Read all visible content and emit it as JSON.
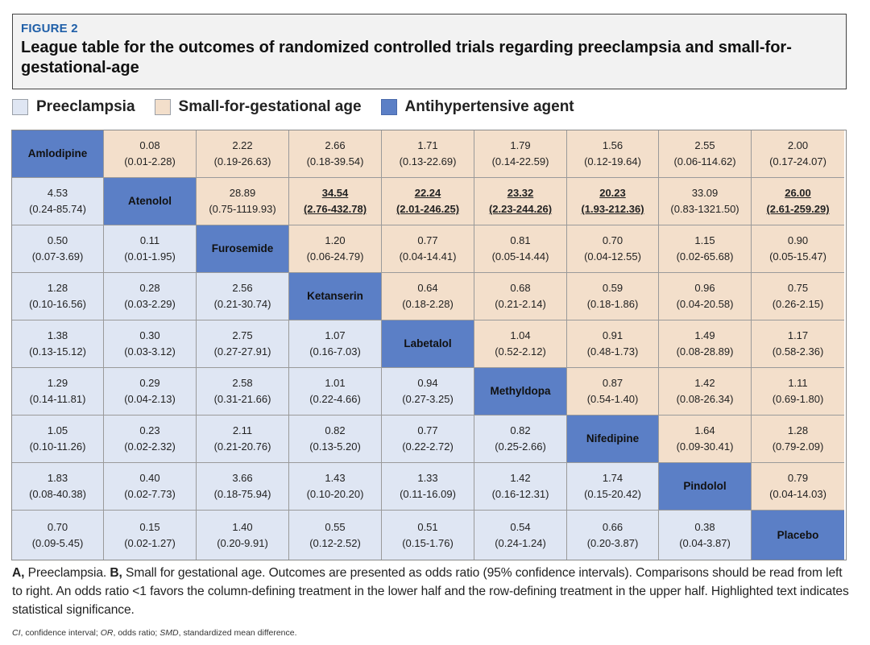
{
  "figure": {
    "label": "FIGURE 2",
    "title": "League table for the outcomes of randomized controlled trials regarding preeclampsia and small-for-gestational-age"
  },
  "legend": [
    {
      "label": "Preeclampsia",
      "color": "#dfe6f3"
    },
    {
      "label": "Small-for-gestational age",
      "color": "#f3dfcb"
    },
    {
      "label": "Antihypertensive agent",
      "color": "#5b7fc6"
    }
  ],
  "colors": {
    "preeclampsia": "#dfe6f3",
    "sga": "#f3dfcb",
    "agent": "#5b7fc6"
  },
  "table": {
    "treatments": [
      "Amlodipine",
      "Atenolol",
      "Furosemide",
      "Ketanserin",
      "Labetalol",
      "Methyldopa",
      "Nifedipine",
      "Pindolol",
      "Placebo"
    ],
    "rows": [
      [
        null,
        [
          "0.08",
          "(0.01-2.28)",
          false
        ],
        [
          "2.22",
          "(0.19-26.63)",
          false
        ],
        [
          "2.66",
          "(0.18-39.54)",
          false
        ],
        [
          "1.71",
          "(0.13-22.69)",
          false
        ],
        [
          "1.79",
          "(0.14-22.59)",
          false
        ],
        [
          "1.56",
          "(0.12-19.64)",
          false
        ],
        [
          "2.55",
          "(0.06-114.62)",
          false
        ],
        [
          "2.00",
          "(0.17-24.07)",
          false
        ]
      ],
      [
        [
          "4.53",
          "(0.24-85.74)",
          false
        ],
        null,
        [
          "28.89",
          "(0.75-1119.93)",
          false
        ],
        [
          "34.54",
          "(2.76-432.78)",
          true
        ],
        [
          "22.24",
          "(2.01-246.25)",
          true
        ],
        [
          "23.32",
          "(2.23-244.26)",
          true
        ],
        [
          "20.23",
          "(1.93-212.36)",
          true
        ],
        [
          "33.09",
          "(0.83-1321.50)",
          false
        ],
        [
          "26.00",
          "(2.61-259.29)",
          true
        ]
      ],
      [
        [
          "0.50",
          "(0.07-3.69)",
          false
        ],
        [
          "0.11",
          "(0.01-1.95)",
          false
        ],
        null,
        [
          "1.20",
          "(0.06-24.79)",
          false
        ],
        [
          "0.77",
          "(0.04-14.41)",
          false
        ],
        [
          "0.81",
          "(0.05-14.44)",
          false
        ],
        [
          "0.70",
          "(0.04-12.55)",
          false
        ],
        [
          "1.15",
          "(0.02-65.68)",
          false
        ],
        [
          "0.90",
          "(0.05-15.47)",
          false
        ]
      ],
      [
        [
          "1.28",
          "(0.10-16.56)",
          false
        ],
        [
          "0.28",
          "(0.03-2.29)",
          false
        ],
        [
          "2.56",
          "(0.21-30.74)",
          false
        ],
        null,
        [
          "0.64",
          "(0.18-2.28)",
          false
        ],
        [
          "0.68",
          "(0.21-2.14)",
          false
        ],
        [
          "0.59",
          "(0.18-1.86)",
          false
        ],
        [
          "0.96",
          "(0.04-20.58)",
          false
        ],
        [
          "0.75",
          "(0.26-2.15)",
          false
        ]
      ],
      [
        [
          "1.38",
          "(0.13-15.12)",
          false
        ],
        [
          "0.30",
          "(0.03-3.12)",
          false
        ],
        [
          "2.75",
          "(0.27-27.91)",
          false
        ],
        [
          "1.07",
          "(0.16-7.03)",
          false
        ],
        null,
        [
          "1.04",
          "(0.52-2.12)",
          false
        ],
        [
          "0.91",
          "(0.48-1.73)",
          false
        ],
        [
          "1.49",
          "(0.08-28.89)",
          false
        ],
        [
          "1.17",
          "(0.58-2.36)",
          false
        ]
      ],
      [
        [
          "1.29",
          "(0.14-11.81)",
          false
        ],
        [
          "0.29",
          "(0.04-2.13)",
          false
        ],
        [
          "2.58",
          "(0.31-21.66)",
          false
        ],
        [
          "1.01",
          "(0.22-4.66)",
          false
        ],
        [
          "0.94",
          "(0.27-3.25)",
          false
        ],
        null,
        [
          "0.87",
          "(0.54-1.40)",
          false
        ],
        [
          "1.42",
          "(0.08-26.34)",
          false
        ],
        [
          "1.11",
          "(0.69-1.80)",
          false
        ]
      ],
      [
        [
          "1.05",
          "(0.10-11.26)",
          false
        ],
        [
          "0.23",
          "(0.02-2.32)",
          false
        ],
        [
          "2.11",
          "(0.21-20.76)",
          false
        ],
        [
          "0.82",
          "(0.13-5.20)",
          false
        ],
        [
          "0.77",
          "(0.22-2.72)",
          false
        ],
        [
          "0.82",
          "(0.25-2.66)",
          false
        ],
        null,
        [
          "1.64",
          "(0.09-30.41)",
          false
        ],
        [
          "1.28",
          "(0.79-2.09)",
          false
        ]
      ],
      [
        [
          "1.83",
          "(0.08-40.38)",
          false
        ],
        [
          "0.40",
          "(0.02-7.73)",
          false
        ],
        [
          "3.66",
          "(0.18-75.94)",
          false
        ],
        [
          "1.43",
          "(0.10-20.20)",
          false
        ],
        [
          "1.33",
          "(0.11-16.09)",
          false
        ],
        [
          "1.42",
          "(0.16-12.31)",
          false
        ],
        [
          "1.74",
          "(0.15-20.42)",
          false
        ],
        null,
        [
          "0.79",
          "(0.04-14.03)",
          false
        ]
      ],
      [
        [
          "0.70",
          "(0.09-5.45)",
          false
        ],
        [
          "0.15",
          "(0.02-1.27)",
          false
        ],
        [
          "1.40",
          "(0.20-9.91)",
          false
        ],
        [
          "0.55",
          "(0.12-2.52)",
          false
        ],
        [
          "0.51",
          "(0.15-1.76)",
          false
        ],
        [
          "0.54",
          "(0.24-1.24)",
          false
        ],
        [
          "0.66",
          "(0.20-3.87)",
          false
        ],
        [
          "0.38",
          "(0.04-3.87)",
          false
        ],
        null
      ]
    ]
  },
  "caption": {
    "a_label": "A,",
    "a_text": " Preeclampsia. ",
    "b_label": "B,",
    "b_text": " Small for gestational age. Outcomes are presented as odds ratio (95% confidence intervals). Comparisons should be read from left to right. An odds ratio <1 favors the column-defining treatment in the lower half and the row-defining treatment in the upper half. Highlighted text indicates statistical significance."
  },
  "abbreviations": [
    {
      "term": "CI",
      "definition": ", confidence interval; "
    },
    {
      "term": "OR",
      "definition": ", odds ratio; "
    },
    {
      "term": "SMD",
      "definition": ", standardized mean difference."
    }
  ]
}
